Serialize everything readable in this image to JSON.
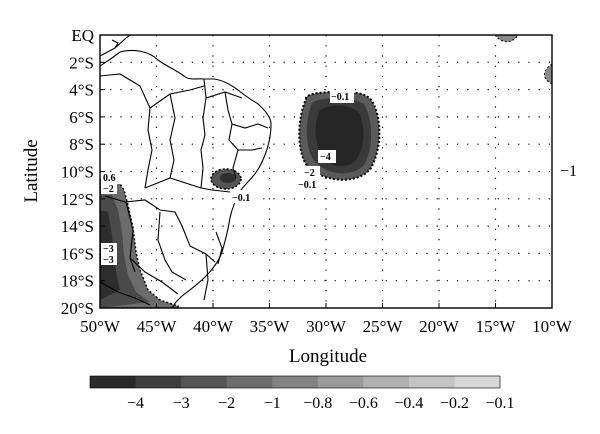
{
  "map": {
    "latitude_ticks": [
      "EQ",
      "2°S",
      "4°S",
      "6°S",
      "8°S",
      "10°S",
      "12°S",
      "14°S",
      "16°S",
      "18°S",
      "20°S"
    ],
    "longitude_ticks": [
      "50°W",
      "45°W",
      "40°W",
      "35°W",
      "30°W",
      "25°W",
      "20°W",
      "15°W",
      "10°W"
    ],
    "ylabel": "Latitude",
    "xlabel": "Longitude",
    "side_label": "−1",
    "contour_labels": {
      "ocean_top": "−0.1",
      "ocean_inner": "−4",
      "ocean_mid": "−2",
      "ocean_bottom": "−0.1",
      "coast": "−0.1",
      "west_a": "0.6",
      "west_b": "−2",
      "west_c": "−3",
      "west_d": "−3"
    },
    "colorbar": {
      "tick_labels": [
        "−4",
        "−3",
        "−2",
        "−1",
        "−0.8",
        "−0.6",
        "−0.4",
        "−0.2",
        "−0.1"
      ],
      "colors": [
        "#2b2b2b",
        "#3e3e3e",
        "#555555",
        "#6c6c6c",
        "#838383",
        "#9a9a9a",
        "#b0b0b0",
        "#c4c4c4",
        "#d7d7d7"
      ]
    }
  }
}
